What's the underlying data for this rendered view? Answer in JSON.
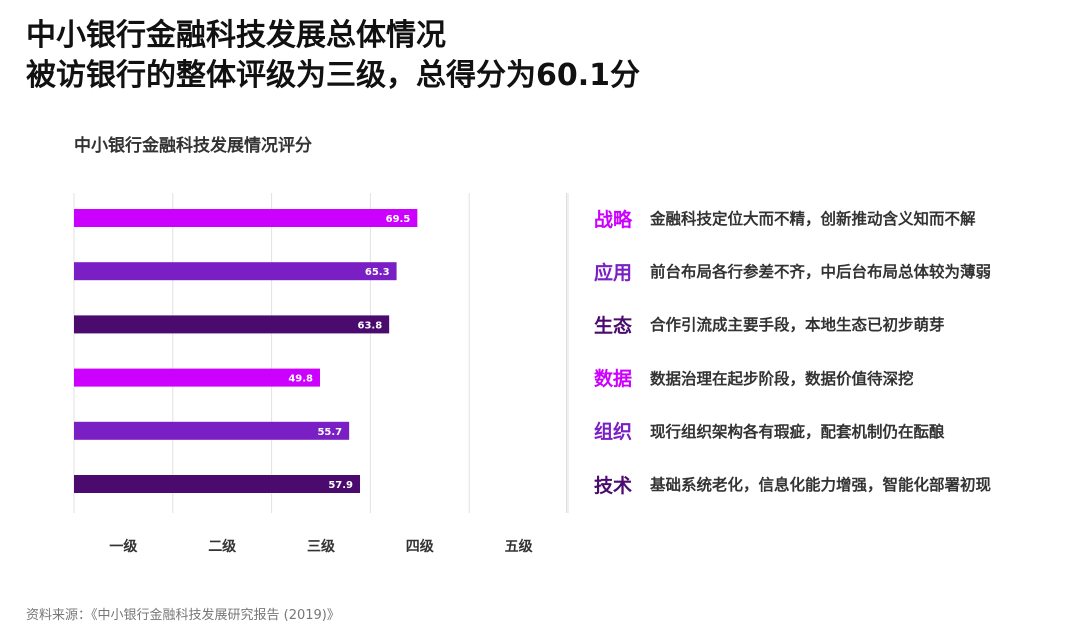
{
  "title_lines": [
    "中小银行金融科技发展总体情况",
    "被访银行的整体评级为三级，总得分为60.1分"
  ],
  "chart_data": {
    "type": "bar",
    "orientation": "horizontal",
    "title": "中小银行金融科技发展情况评分",
    "categories": [
      "战略",
      "应用",
      "生态",
      "数据",
      "组织",
      "技术"
    ],
    "values": [
      69.5,
      65.3,
      63.8,
      49.8,
      55.7,
      57.9
    ],
    "bar_colors": [
      "#cc00ff",
      "#7a1fc4",
      "#4a0a6e",
      "#cc00ff",
      "#7a1fc4",
      "#4a0a6e"
    ],
    "x_tick_labels": [
      "一级",
      "二级",
      "三级",
      "四级",
      "五级"
    ],
    "xlim": [
      0,
      100
    ],
    "grid": true
  },
  "dimensions": [
    {
      "name": "战略",
      "desc": "金融科技定位大而不精，创新推动含义知而不解",
      "color": "#cc00ff"
    },
    {
      "name": "应用",
      "desc": "前台布局各行参差不齐，中后台布局总体较为薄弱",
      "color": "#7a1fc4"
    },
    {
      "name": "生态",
      "desc": "合作引流成主要手段，本地生态已初步萌芽",
      "color": "#4a0a6e"
    },
    {
      "name": "数据",
      "desc": "数据治理在起步阶段，数据价值待深挖",
      "color": "#cc00ff"
    },
    {
      "name": "组织",
      "desc": "现行组织架构各有瑕疵，配套机制仍在酝酿",
      "color": "#7a1fc4"
    },
    {
      "name": "技术",
      "desc": "基础系统老化，信息化能力增强，智能化部署初现",
      "color": "#4a0a6e"
    }
  ],
  "source": "资料来源：《中小银行金融科技发展研究报告 (2019)》"
}
